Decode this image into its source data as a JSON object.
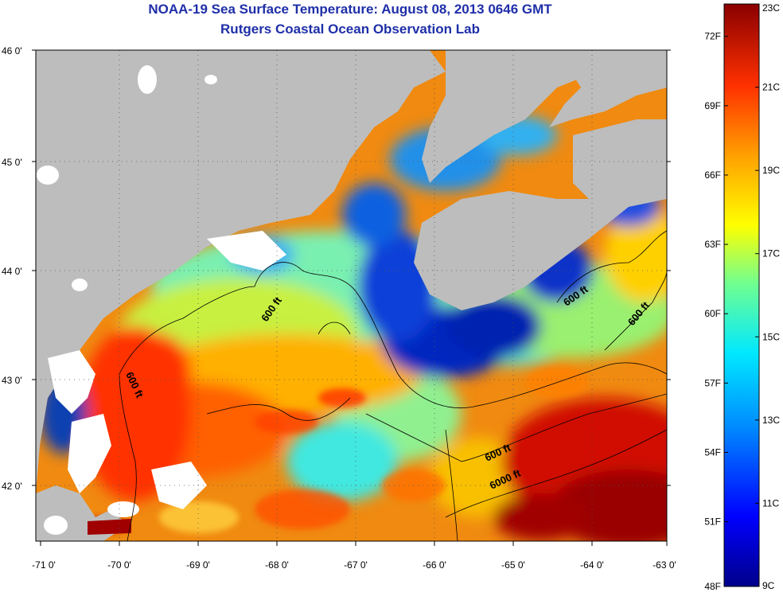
{
  "title_line1": "NOAA-19 Sea Surface Temperature:  August 08, 2013 0646 GMT",
  "title_line2": "Rutgers Coastal Ocean Observation Lab",
  "latitude_labels": [
    "46 0'",
    "45 0'",
    "44 0'",
    "43 0'",
    "42 0'"
  ],
  "longitude_labels": [
    "-71 0'",
    "-70 0'",
    "-69 0'",
    "-68 0'",
    "-67 0'",
    "-66 0'",
    "-65 0'",
    "-64 0'",
    "-63 0'"
  ],
  "contour_labels": [
    "600 ft",
    "600 ft",
    "600 ft",
    "600 ft",
    "600 ft",
    "6000 ft"
  ],
  "colorbar": {
    "fahrenheit_labels": [
      "72F",
      "69F",
      "66F",
      "63F",
      "60F",
      "57F",
      "54F",
      "51F",
      "48F"
    ],
    "fahrenheit_values": [
      72,
      69,
      66,
      63,
      60,
      57,
      54,
      51,
      48
    ],
    "celsius_labels": [
      "23C",
      "21C",
      "19C",
      "17C",
      "15C",
      "13C",
      "11C",
      "9C"
    ],
    "celsius_values": [
      23,
      21,
      19,
      17,
      15,
      13,
      11,
      9
    ]
  },
  "colors": {
    "land": "#bdbdbd",
    "title": "#1f2fa8",
    "cold": "#0a1f9e",
    "warm": "#8b0000"
  }
}
